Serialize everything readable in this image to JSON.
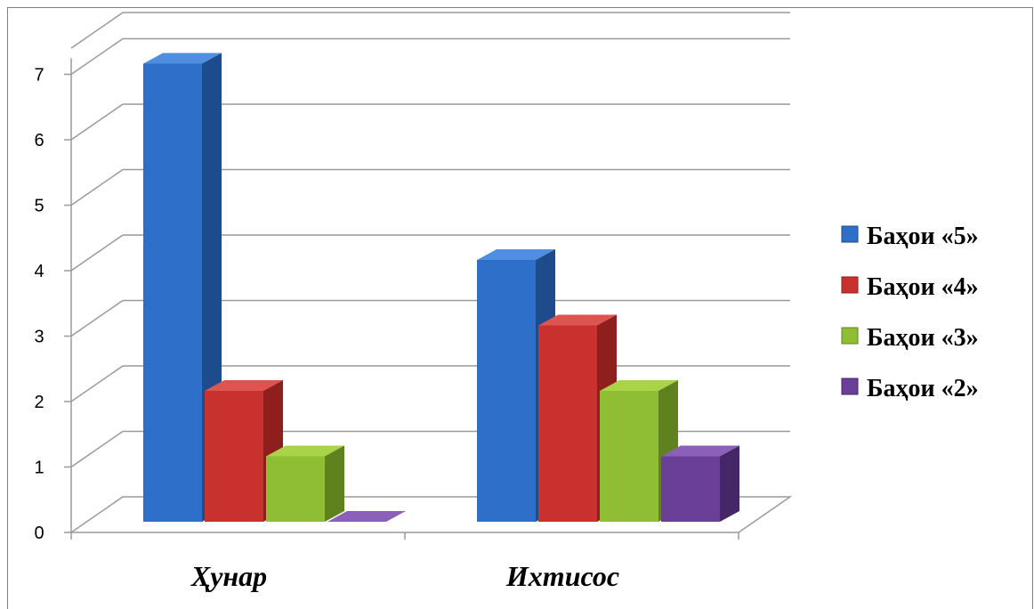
{
  "caption": "",
  "colors": {
    "series_front": [
      "#2e6fc9",
      "#c8312e",
      "#8fbd34",
      "#6a3f98"
    ],
    "series_side": [
      "#1d4b8c",
      "#8e1f1c",
      "#5f821f",
      "#452767"
    ],
    "series_top": [
      "#4f8ee0",
      "#dd5450",
      "#a9d448",
      "#8b60b8"
    ],
    "grid": "#9a9a9a"
  },
  "chart_data": {
    "type": "bar",
    "title": "",
    "xlabel": "",
    "ylabel": "",
    "categories": [
      "Ҳунар",
      "Ихтисос"
    ],
    "series": [
      {
        "name": "Баҳои «5»",
        "values": [
          7,
          4
        ]
      },
      {
        "name": "Баҳои «4»",
        "values": [
          2,
          3
        ]
      },
      {
        "name": "Баҳои «3»",
        "values": [
          1,
          2
        ]
      },
      {
        "name": "Баҳои «2»",
        "values": [
          0,
          1
        ]
      }
    ],
    "ylim": [
      0,
      7
    ],
    "yticks": [
      "0",
      "1",
      "2",
      "3",
      "4",
      "5",
      "6",
      "7"
    ],
    "grid": true,
    "legend_position": "right"
  }
}
